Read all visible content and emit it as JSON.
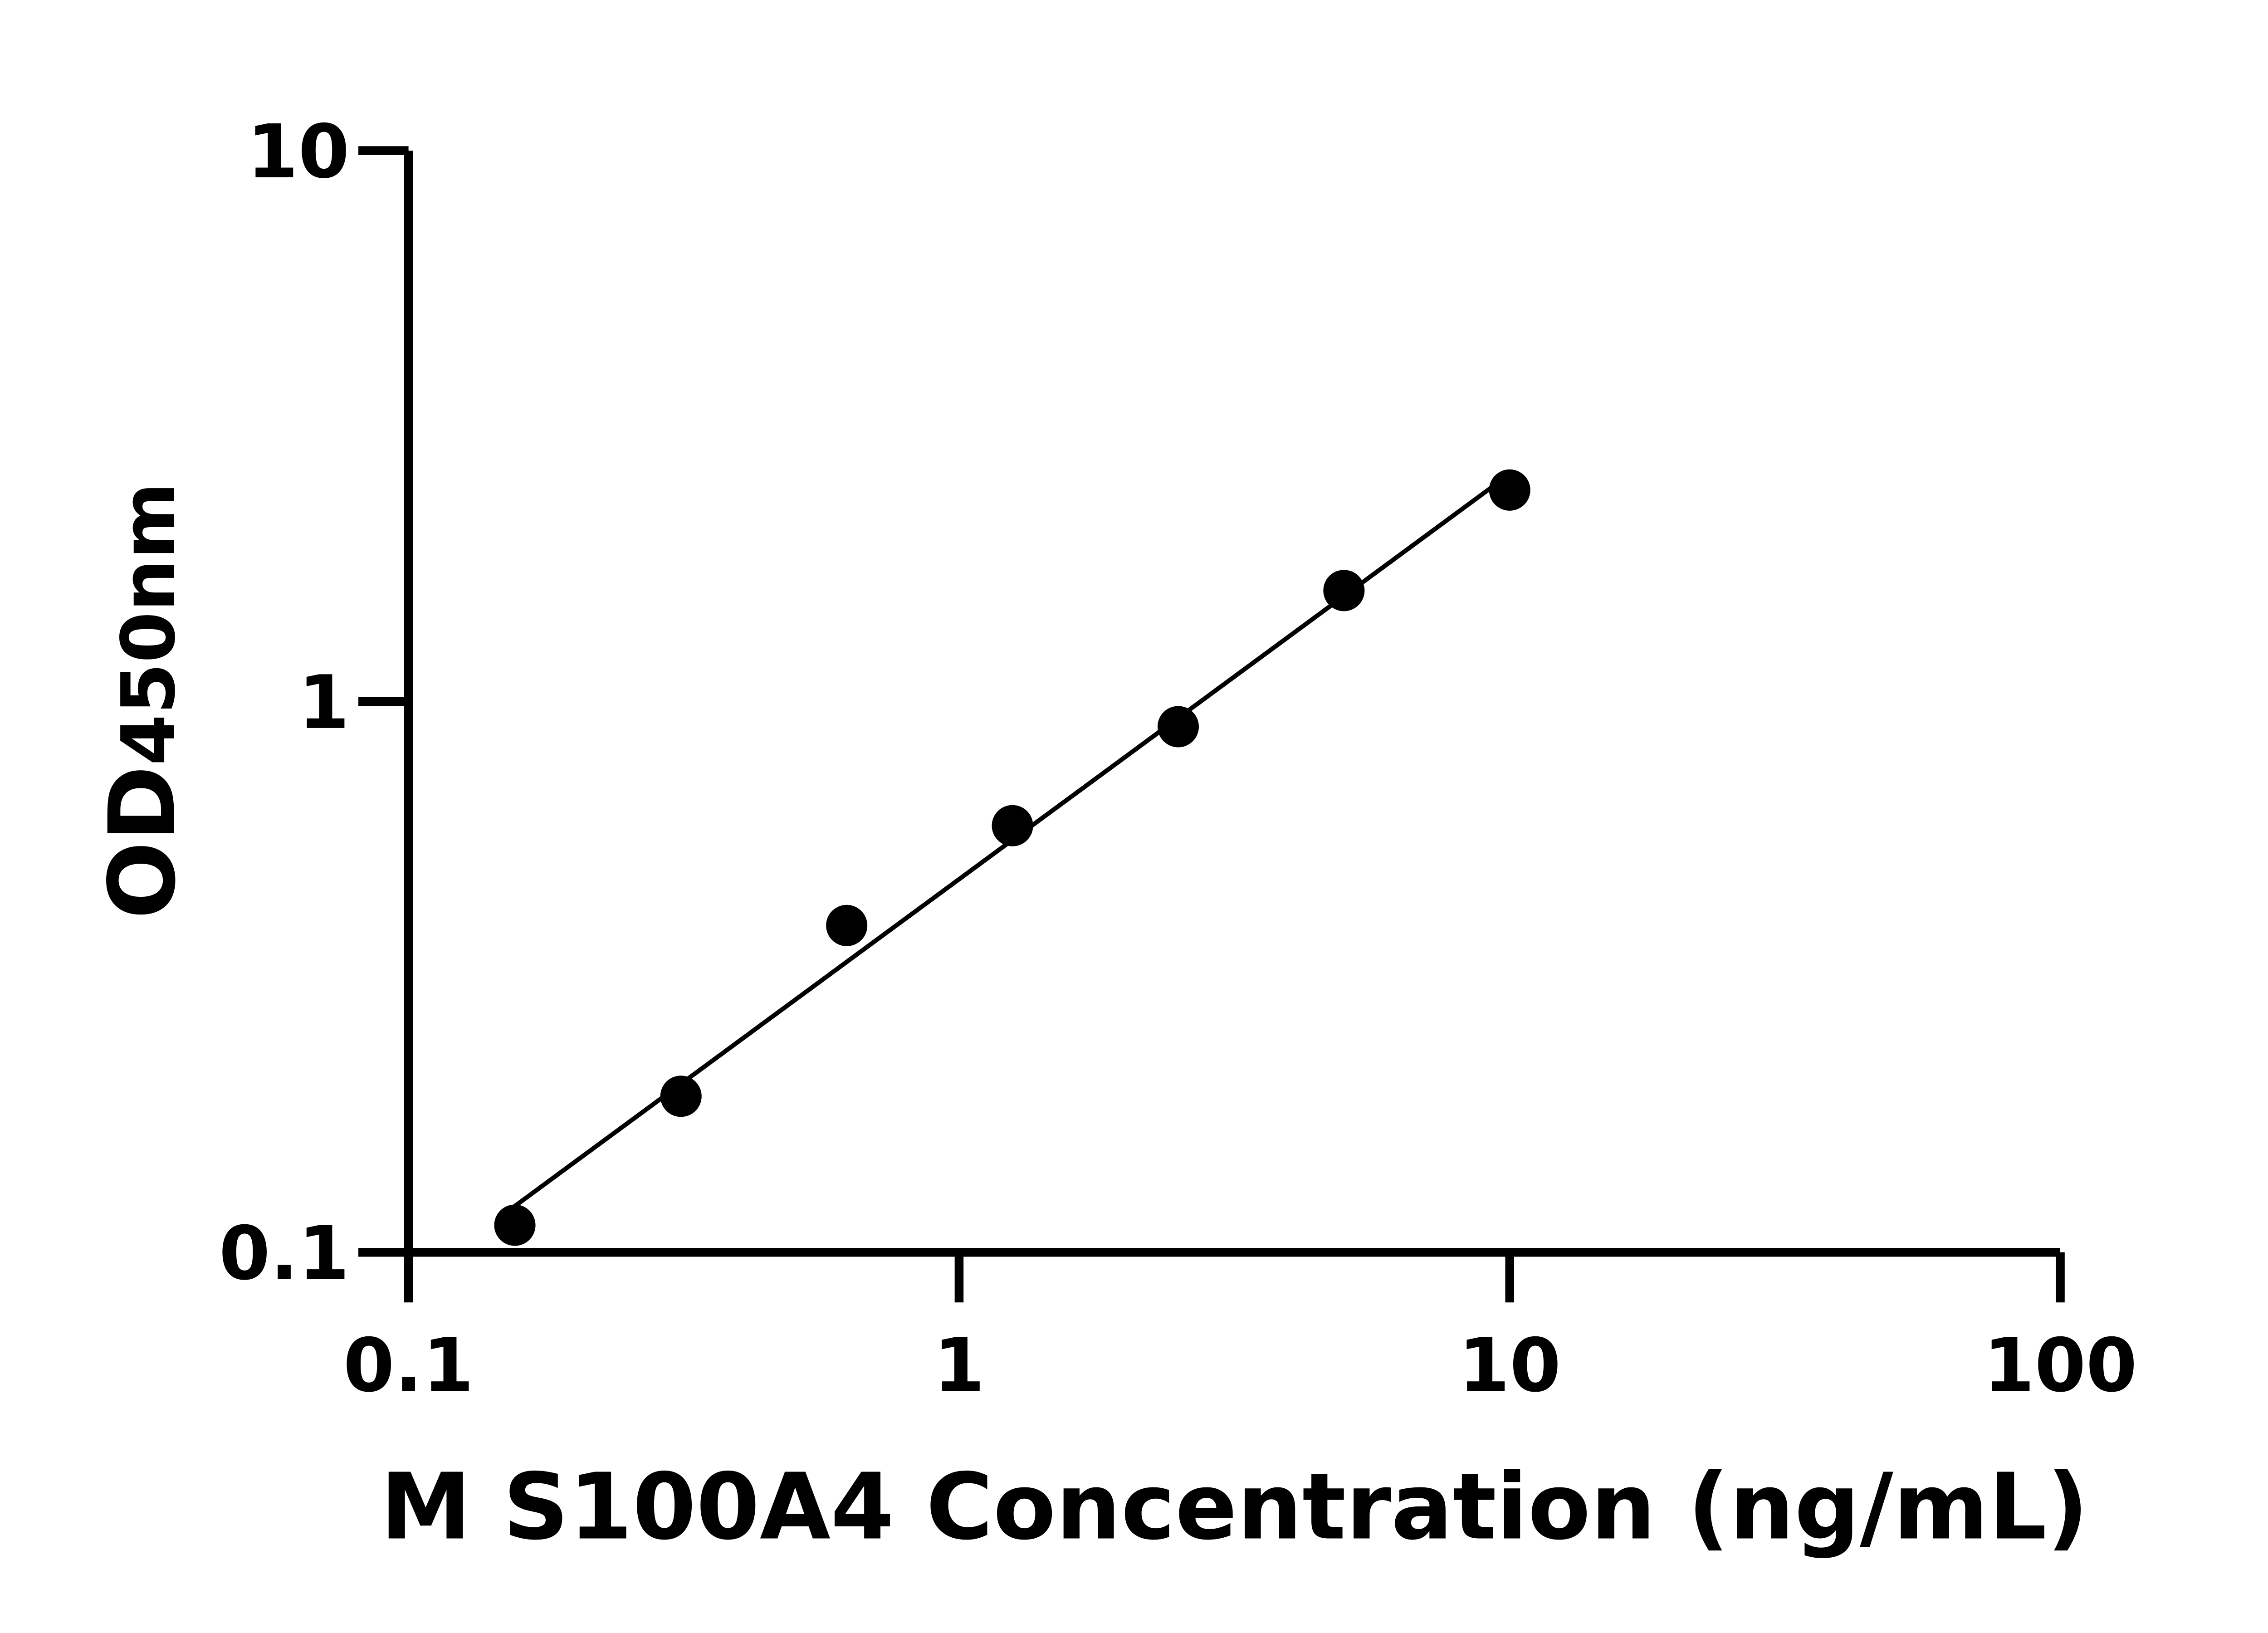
{
  "chart_data": {
    "type": "scatter",
    "title": "",
    "xlabel": "M S100A4 Concentration (ng/mL)",
    "ylabel_main": "OD",
    "ylabel_sub": "450nm",
    "x_scale": "log",
    "y_scale": "log",
    "xlim": [
      0.1,
      100
    ],
    "ylim": [
      0.1,
      10
    ],
    "x_ticks": [
      0.1,
      1,
      10,
      100
    ],
    "x_tick_labels": [
      "0.1",
      "1",
      "10",
      "100"
    ],
    "y_ticks": [
      0.1,
      1,
      10
    ],
    "y_tick_labels": [
      "0.1",
      "1",
      "10"
    ],
    "grid": false,
    "legend": "none",
    "fit_line": true,
    "color": "#000000",
    "series": [
      {
        "x": [
          0.156,
          0.3125,
          0.625,
          1.25,
          2.5,
          5,
          10
        ],
        "y": [
          0.112,
          0.192,
          0.392,
          0.595,
          0.9,
          1.59,
          2.42
        ]
      }
    ]
  }
}
